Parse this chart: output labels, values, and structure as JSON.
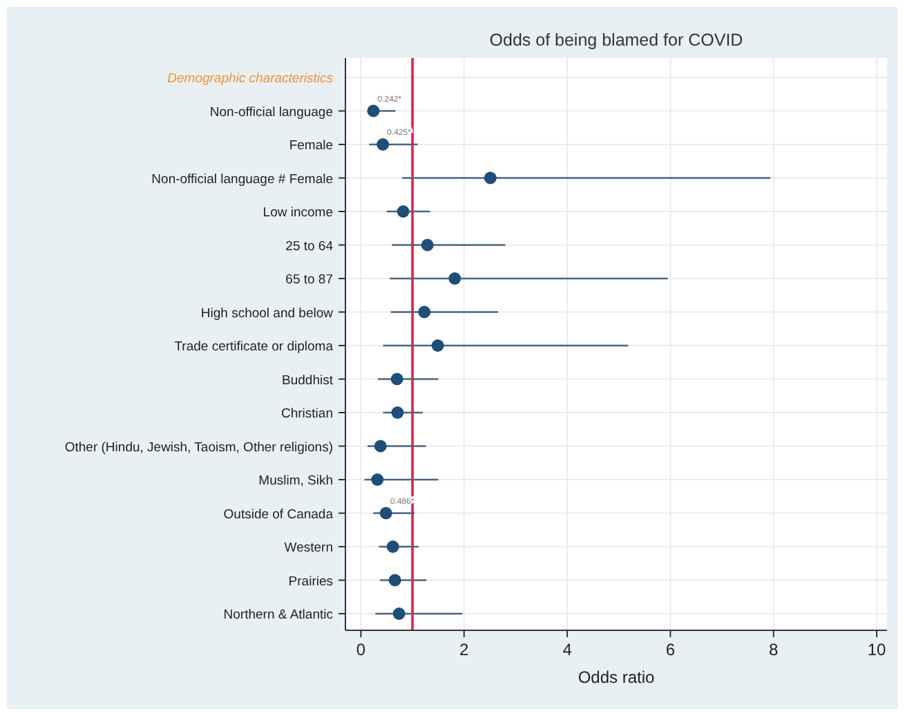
{
  "chart_data": {
    "type": "scatter",
    "orientation": "horizontal",
    "title": "Odds of being blamed for COVID",
    "xlabel": "Odds ratio",
    "categories": [
      "Demographic characteristics",
      "Non-official language",
      "Female",
      "Non-official language # Female",
      "Low income",
      "25 to 64",
      "65 to 87",
      "High school and below",
      "Trade certificate or diploma",
      "Buddhist",
      "Christian",
      "Other (Hindu, Jewish, Taoism, Other religions)",
      "Muslim, Sikh",
      "Outside of Canada",
      "Western",
      "Prairies",
      "Northern & Atlantic"
    ],
    "series": [
      {
        "color": "#1f4e79",
        "values": [
          null,
          0.242,
          0.425,
          2.51,
          0.82,
          1.29,
          1.82,
          1.23,
          1.49,
          0.7,
          0.71,
          0.38,
          0.32,
          0.486,
          0.62,
          0.66,
          0.74
        ],
        "errors": [
          null,
          [
            0.13,
            0.67
          ],
          [
            0.16,
            1.1
          ],
          [
            0.8,
            7.94
          ],
          [
            0.5,
            1.34
          ],
          [
            0.6,
            2.8
          ],
          [
            0.56,
            5.95
          ],
          [
            0.58,
            2.66
          ],
          [
            0.43,
            5.18
          ],
          [
            0.33,
            1.5
          ],
          [
            0.43,
            1.2
          ],
          [
            0.13,
            1.26
          ],
          [
            0.07,
            1.5
          ],
          [
            0.24,
            1.04
          ],
          [
            0.35,
            1.12
          ],
          [
            0.37,
            1.27
          ],
          [
            0.28,
            1.97
          ]
        ],
        "value_labels": [
          null,
          "0.242*",
          "0.425*",
          null,
          null,
          null,
          null,
          null,
          null,
          null,
          null,
          null,
          null,
          "0.486*",
          null,
          null,
          null
        ]
      }
    ],
    "xlim": [
      -0.3,
      10.2
    ],
    "xticks": [
      0,
      2,
      4,
      6,
      8,
      10
    ],
    "grid": true,
    "marker": "circle",
    "ref_lines": [
      {
        "axis": "x",
        "value": 1,
        "color": "#e0204a"
      }
    ]
  }
}
